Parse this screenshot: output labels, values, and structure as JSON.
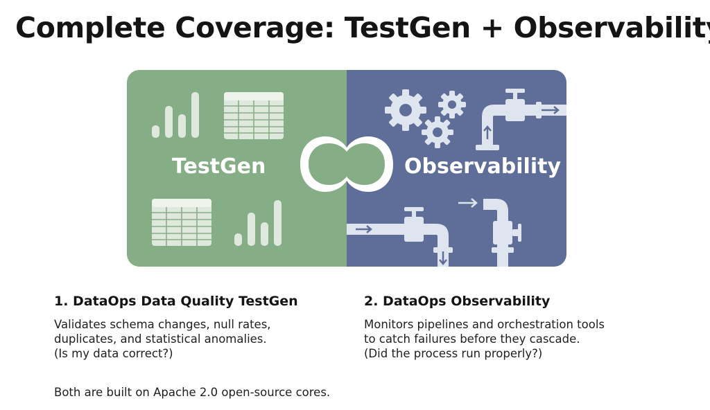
{
  "title": "Complete Coverage: TestGen + Observability",
  "colors": {
    "testgen_green": "#86ae86",
    "observability_blue": "#5e6e99",
    "icon_light": "#dfe5ef"
  },
  "panel": {
    "left": {
      "label": "TestGen",
      "icons": [
        "bar-chart-icon",
        "table-grid-icon"
      ]
    },
    "right": {
      "label": "Observability",
      "icons": [
        "gears-icon",
        "pipe-valve-icon",
        "flow-arrow-icon"
      ]
    },
    "connector_icon": "infinity-link-icon"
  },
  "sections": [
    {
      "heading": "1. DataOps Data Quality TestGen",
      "lines": [
        "Validates schema changes, null rates,",
        "duplicates, and statistical anomalies.",
        "(Is my data correct?)"
      ]
    },
    {
      "heading": "2. DataOps Observability",
      "lines": [
        "Monitors pipelines and orchestration tools",
        "to catch failures before they cascade.",
        "(Did the process run properly?)"
      ]
    }
  ],
  "footer": "Both are built on Apache 2.0 open-source cores."
}
